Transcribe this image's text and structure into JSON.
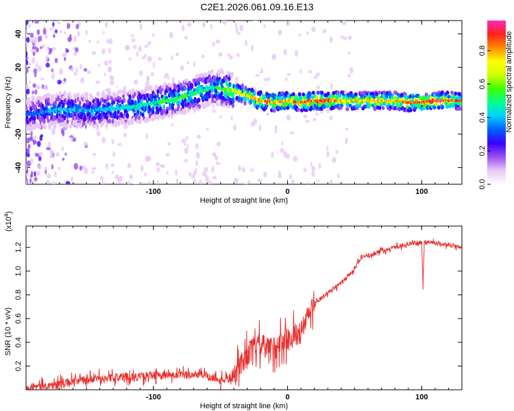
{
  "title": "C2E1.2026.061.09.16.E13",
  "colors": {
    "snr_line": "#e8302e",
    "axis": "#000000"
  },
  "chart_data": [
    {
      "type": "heatmap",
      "name": "spectrogram",
      "xlabel": "Height of straight line (km)",
      "ylabel": "Frequency (Hz)",
      "xlim": [
        -195,
        130
      ],
      "ylim": [
        -50,
        48
      ],
      "xticks": [
        -100,
        0,
        100
      ],
      "xtick_labels": [
        "-100",
        "0",
        "100"
      ],
      "yticks": [
        -40,
        -20,
        0,
        20,
        40
      ],
      "ytick_labels": [
        "-40",
        "-20",
        "0",
        "20",
        "40"
      ],
      "ridge": {
        "x": [
          -190,
          -170,
          -150,
          -130,
          -110,
          -90,
          -70,
          -55,
          -40,
          -30,
          -20,
          -10,
          0,
          10,
          20,
          40,
          60,
          80,
          90,
          100,
          110,
          130
        ],
        "freq": [
          -8,
          -5,
          -6,
          -5,
          -3,
          0,
          4,
          8,
          6,
          3,
          0,
          -1,
          0,
          -1,
          0,
          0,
          0,
          0,
          -1,
          -1,
          0,
          0
        ],
        "peak_amplitude": [
          0.35,
          0.45,
          0.4,
          0.45,
          0.5,
          0.55,
          0.55,
          0.5,
          0.7,
          0.75,
          0.85,
          0.85,
          0.8,
          0.85,
          0.9,
          0.8,
          0.78,
          0.8,
          0.9,
          0.85,
          0.9,
          0.85
        ]
      },
      "colorbar": {
        "label": "Normalized spectral amplitude",
        "range": [
          0,
          0.98
        ],
        "ticks": [
          0.0,
          0.2,
          0.4,
          0.6,
          0.8
        ],
        "tick_labels": [
          "0.0",
          "0.2",
          "0.4",
          "0.6",
          "0.8"
        ],
        "colors": [
          "#ffffff",
          "#e8c8f6",
          "#9a4ff0",
          "#3a00ff",
          "#0060ff",
          "#00d0ff",
          "#00ff90",
          "#40ff00",
          "#d0ff00",
          "#ffff00",
          "#ff8c00",
          "#ff2020",
          "#ff2ab8"
        ]
      }
    },
    {
      "type": "line",
      "name": "snr",
      "xlabel": "Height of straight line (km)",
      "ylabel": "SNR (10 * v/v)",
      "multiplier_label": "(x10",
      "multiplier_exp": "4",
      "multiplier_close": ")",
      "xlim": [
        -195,
        130
      ],
      "ylim": [
        0,
        1.38
      ],
      "xticks": [
        -100,
        0,
        100
      ],
      "xtick_labels": [
        "-100",
        "0",
        "100"
      ],
      "yticks": [
        0.2,
        0.4,
        0.6,
        0.8,
        1.0,
        1.2
      ],
      "ytick_labels": [
        "0.2",
        "0.4",
        "0.6",
        "0.8",
        "1.0",
        "1.2"
      ],
      "series": [
        {
          "name": "SNR",
          "x": [
            -195,
            -180,
            -170,
            -160,
            -150,
            -140,
            -130,
            -120,
            -110,
            -100,
            -90,
            -80,
            -70,
            -60,
            -50,
            -40,
            -35,
            -30,
            -25,
            -20,
            -15,
            -10,
            -5,
            0,
            5,
            10,
            15,
            20,
            30,
            40,
            50,
            55,
            60,
            70,
            80,
            90,
            100,
            101,
            102,
            110,
            120,
            130
          ],
          "values": [
            0.02,
            0.03,
            0.05,
            0.07,
            0.08,
            0.1,
            0.1,
            0.11,
            0.11,
            0.12,
            0.12,
            0.12,
            0.13,
            0.12,
            0.08,
            0.1,
            0.22,
            0.3,
            0.35,
            0.38,
            0.35,
            0.36,
            0.4,
            0.42,
            0.46,
            0.48,
            0.62,
            0.72,
            0.82,
            0.9,
            1.02,
            1.12,
            1.13,
            1.17,
            1.2,
            1.23,
            1.24,
            0.88,
            1.25,
            1.24,
            1.22,
            1.2
          ]
        }
      ]
    }
  ]
}
